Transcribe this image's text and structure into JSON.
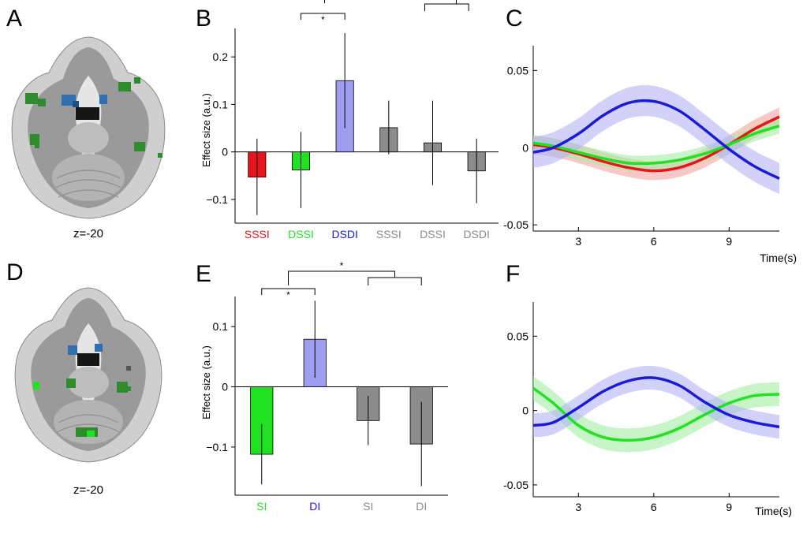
{
  "panels": {
    "A": {
      "letter": "A",
      "slice_label": "z=-20"
    },
    "D": {
      "letter": "D",
      "slice_label": "z=-20"
    }
  },
  "colors": {
    "red": "#e8141a",
    "green": "#21e221",
    "blue": "#1a1adb",
    "bar_blue": "#9e9ef0",
    "gray": "#8c8c8c",
    "dark_gray": "#7a7a7a",
    "brain_dark": "#6f6f6f",
    "brain_light": "#d6d6d6",
    "blob_green": "#2e8b2e",
    "blob_blue": "#2f6fb0"
  },
  "chart_data": [
    {
      "panel": "B",
      "type": "bar",
      "letter": "B",
      "ylabel": "Effect size (a.u.)",
      "ylim": [
        -0.15,
        0.26
      ],
      "yticks": [
        -0.1,
        0,
        0.1,
        0.2
      ],
      "ytick_labels": [
        "−0.1",
        "0",
        "0.1",
        "0.2"
      ],
      "categories": [
        "SSSI",
        "DSSI",
        "DSDI",
        "SSSI",
        "DSSI",
        "DSDI"
      ],
      "category_colors": [
        "#e8141a",
        "#21e221",
        "#1a1adb",
        "#8c8c8c",
        "#8c8c8c",
        "#8c8c8c"
      ],
      "bar_colors": [
        "#e8141a",
        "#21e221",
        "#9e9ef0",
        "#8c8c8c",
        "#8c8c8c",
        "#8c8c8c"
      ],
      "values": [
        -0.053,
        -0.038,
        0.15,
        0.051,
        0.019,
        -0.04
      ],
      "err_low": [
        -0.133,
        -0.118,
        0.05,
        -0.005,
        -0.07,
        -0.108
      ],
      "err_high": [
        0.028,
        0.042,
        0.25,
        0.108,
        0.108,
        0.028
      ],
      "significance": [
        {
          "from": 1,
          "to": 2,
          "label": "*"
        }
      ]
    },
    {
      "panel": "C",
      "type": "line",
      "letter": "C",
      "xlabel": "Time(s)",
      "xlim": [
        1.2,
        11.0
      ],
      "ylim": [
        -0.054,
        0.066
      ],
      "xticks": [
        3,
        6,
        9
      ],
      "yticks": [
        -0.05,
        0,
        0.05
      ],
      "ytick_labels": [
        "-0.05",
        "0",
        "0.05"
      ],
      "series": [
        {
          "color": "#e8141a",
          "band": "#f4a3a0",
          "x": [
            1.2,
            2,
            3,
            4,
            5,
            6,
            7,
            8,
            9,
            10,
            11
          ],
          "y": [
            0.002,
            0.0,
            -0.004,
            -0.009,
            -0.013,
            -0.015,
            -0.013,
            -0.007,
            0.002,
            0.012,
            0.02
          ],
          "err": [
            0.006,
            0.006,
            0.006,
            0.006,
            0.006,
            0.006,
            0.006,
            0.006,
            0.006,
            0.006,
            0.006
          ]
        },
        {
          "color": "#21e221",
          "band": "#a3eea3",
          "x": [
            1.2,
            2,
            3,
            4,
            5,
            6,
            7,
            8,
            9,
            10,
            11
          ],
          "y": [
            0.003,
            0.001,
            -0.003,
            -0.007,
            -0.01,
            -0.01,
            -0.008,
            -0.004,
            0.002,
            0.009,
            0.014
          ],
          "err": [
            0.005,
            0.005,
            0.005,
            0.005,
            0.005,
            0.005,
            0.005,
            0.005,
            0.005,
            0.005,
            0.005
          ]
        },
        {
          "color": "#1a1adb",
          "band": "#b3b3f5",
          "x": [
            1.2,
            2,
            3,
            4,
            5,
            6,
            7,
            8,
            9,
            10,
            11
          ],
          "y": [
            -0.003,
            0.0,
            0.009,
            0.021,
            0.029,
            0.03,
            0.024,
            0.012,
            -0.001,
            -0.012,
            -0.02
          ],
          "err": [
            0.01,
            0.01,
            0.01,
            0.01,
            0.01,
            0.01,
            0.01,
            0.01,
            0.01,
            0.01,
            0.01
          ]
        }
      ]
    },
    {
      "panel": "E",
      "type": "bar",
      "letter": "E",
      "ylabel": "Effect size (a.u.)",
      "ylim": [
        -0.18,
        0.15
      ],
      "yticks": [
        -0.1,
        0,
        0.1
      ],
      "ytick_labels": [
        "−0.1",
        "0",
        "0.1"
      ],
      "categories": [
        "SI",
        "DI",
        "SI",
        "DI"
      ],
      "category_colors": [
        "#21e221",
        "#1a1adb",
        "#8c8c8c",
        "#8c8c8c"
      ],
      "bar_colors": [
        "#21e221",
        "#9e9ef0",
        "#8c8c8c",
        "#8c8c8c"
      ],
      "values": [
        -0.112,
        0.079,
        -0.056,
        -0.095
      ],
      "err_low": [
        -0.162,
        0.015,
        -0.097,
        -0.165
      ],
      "err_high": [
        -0.062,
        0.143,
        -0.015,
        -0.025
      ],
      "significance": [
        {
          "from": 0,
          "to": 1,
          "label": "*"
        }
      ],
      "group_significance": {
        "left_group": [
          0,
          1
        ],
        "right_group": [
          2,
          3
        ],
        "label": "*"
      }
    },
    {
      "panel": "F",
      "type": "line",
      "letter": "F",
      "xlabel": "Time(s)",
      "xlim": [
        1.2,
        11.0
      ],
      "ylim": [
        -0.058,
        0.073
      ],
      "xticks": [
        3,
        6,
        9
      ],
      "yticks": [
        -0.05,
        0,
        0.05
      ],
      "ytick_labels": [
        "-0.05",
        "0",
        "0.05"
      ],
      "series": [
        {
          "color": "#21e221",
          "band": "#a3eea3",
          "x": [
            1.2,
            2,
            3,
            4,
            5,
            6,
            7,
            8,
            9,
            10,
            11
          ],
          "y": [
            0.015,
            0.005,
            -0.01,
            -0.018,
            -0.02,
            -0.018,
            -0.012,
            -0.003,
            0.005,
            0.01,
            0.011
          ],
          "err": [
            0.008,
            0.008,
            0.008,
            0.008,
            0.008,
            0.008,
            0.008,
            0.008,
            0.008,
            0.008,
            0.008
          ]
        },
        {
          "color": "#1a1adb",
          "band": "#b3b3f5",
          "x": [
            1.2,
            2,
            3,
            4,
            5,
            6,
            7,
            8,
            9,
            10,
            11
          ],
          "y": [
            -0.01,
            -0.008,
            0.002,
            0.013,
            0.02,
            0.022,
            0.017,
            0.006,
            -0.003,
            -0.008,
            -0.011
          ],
          "err": [
            0.008,
            0.008,
            0.008,
            0.008,
            0.008,
            0.008,
            0.008,
            0.008,
            0.008,
            0.008,
            0.008
          ]
        }
      ]
    }
  ]
}
